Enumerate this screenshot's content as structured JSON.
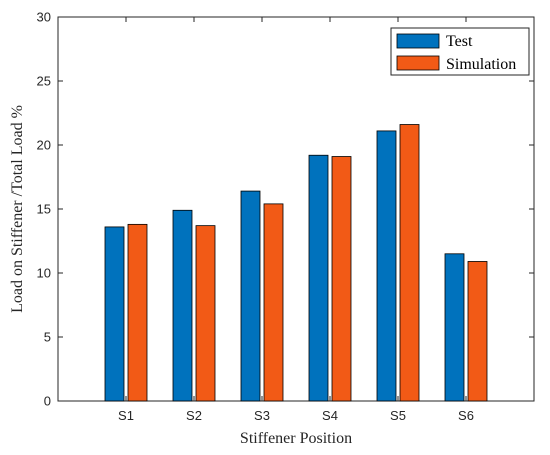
{
  "chart_data": {
    "type": "bar",
    "title": "",
    "xlabel": "Stiffener Position",
    "ylabel": "Load on Stiffener /Total Load %",
    "categories": [
      "S1",
      "S2",
      "S3",
      "S4",
      "S5",
      "S6"
    ],
    "series": [
      {
        "name": "Test",
        "color": "#0072BD",
        "values": [
          13.6,
          14.9,
          16.4,
          19.2,
          21.1,
          11.5
        ]
      },
      {
        "name": "Simulation",
        "color": "#F25A16",
        "values": [
          13.8,
          13.7,
          15.4,
          19.1,
          21.6,
          10.9
        ]
      }
    ],
    "ylim": [
      0,
      30
    ],
    "yticks": [
      0,
      5,
      10,
      15,
      20,
      25,
      30
    ],
    "grid": false,
    "legend_position": "top-right"
  }
}
